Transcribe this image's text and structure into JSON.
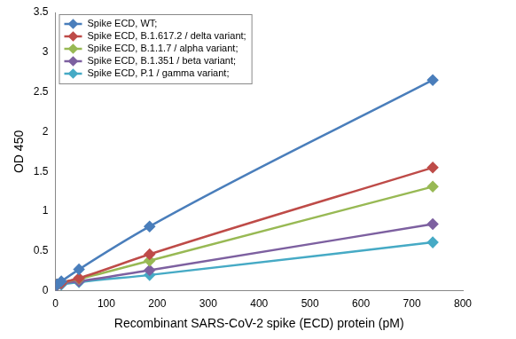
{
  "chart_data": {
    "type": "line",
    "x_label": "Recombinant SARS-CoV-2 spike (ECD) protein (pM)",
    "y_label": "OD 450",
    "x": [
      2.9,
      11.6,
      46.3,
      185,
      741
    ],
    "series": [
      {
        "name": "Spike ECD, WT;",
        "color": "#4a7ebb",
        "marker": "diamond",
        "line_style": "solid",
        "values": [
          0.08,
          0.12,
          0.27,
          0.81,
          2.65
        ]
      },
      {
        "name": "Spike ECD, B.1.617.2 / delta variant;",
        "color": "#be4b48",
        "marker": "diamond",
        "line_style": "solid",
        "values": [
          0.08,
          0.1,
          0.16,
          0.46,
          1.55
        ]
      },
      {
        "name": "Spike ECD, B.1.1.7 / alpha variant;",
        "color": "#98b954",
        "marker": "diamond",
        "line_style": "solid",
        "values": [
          0.08,
          0.1,
          0.15,
          0.38,
          1.31
        ]
      },
      {
        "name": "Spike ECD, B.1.351 / beta variant;",
        "color": "#7d60a0",
        "marker": "diamond",
        "line_style": "solid",
        "values": [
          0.07,
          0.09,
          0.12,
          0.26,
          0.84
        ]
      },
      {
        "name": "Spike ECD, P.1 / gamma variant;",
        "color": "#46aac5",
        "marker": "diamond",
        "line_style": "solid",
        "values": [
          0.07,
          0.08,
          0.11,
          0.2,
          0.61
        ]
      }
    ],
    "xlim": [
      0,
      800
    ],
    "xticks": [
      0,
      100,
      200,
      300,
      400,
      500,
      600,
      700,
      800
    ],
    "ylim": [
      0,
      3.5
    ],
    "yticks": [
      0,
      0.5,
      1,
      1.5,
      2,
      2.5,
      3,
      3.5
    ],
    "grid": false,
    "legend": "upper left"
  }
}
